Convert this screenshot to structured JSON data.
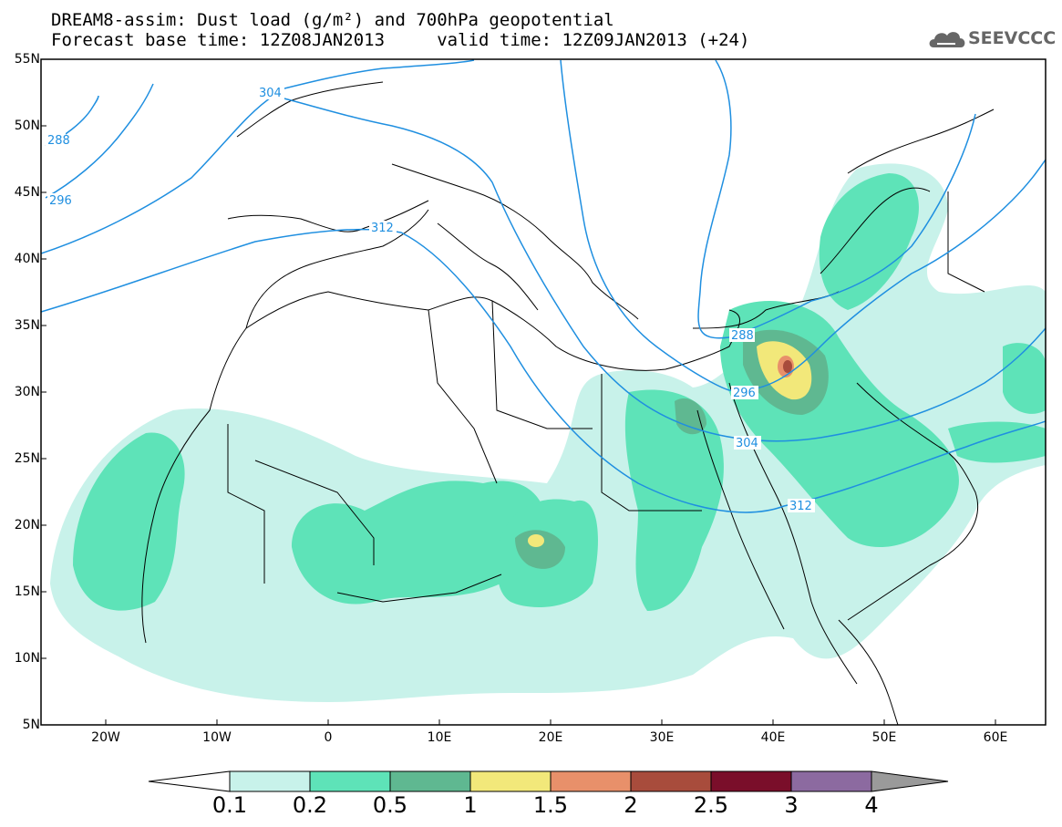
{
  "title_line1": "DREAM8-assim: Dust load (g/m²) and 700hPa geopotential",
  "title_line2": "Forecast base time: 12Z08JAN2013     valid time: 12Z09JAN2013 (+24)",
  "logo_text": "SEEVCCC",
  "lat_labels": [
    "55N",
    "50N",
    "45N",
    "40N",
    "35N",
    "30N",
    "25N",
    "20N",
    "15N",
    "10N",
    "5N"
  ],
  "lon_labels": [
    "20W",
    "10W",
    "0",
    "10E",
    "20E",
    "30E",
    "40E",
    "50E",
    "60E"
  ],
  "contour_labels": [
    "304",
    "288",
    "296",
    "312",
    "288",
    "296",
    "304",
    "312"
  ],
  "colorbar": {
    "labels": [
      "0.1",
      "0.2",
      "0.5",
      "1",
      "1.5",
      "2",
      "2.5",
      "3",
      "4"
    ],
    "colors": [
      "#c8f2ea",
      "#5ee3b8",
      "#5fb891",
      "#f2e87a",
      "#e8906a",
      "#a84c3c",
      "#7a0e2a",
      "#8c6aa0"
    ],
    "under_color": "#ffffff",
    "over_color": "#9a9a9a"
  }
}
